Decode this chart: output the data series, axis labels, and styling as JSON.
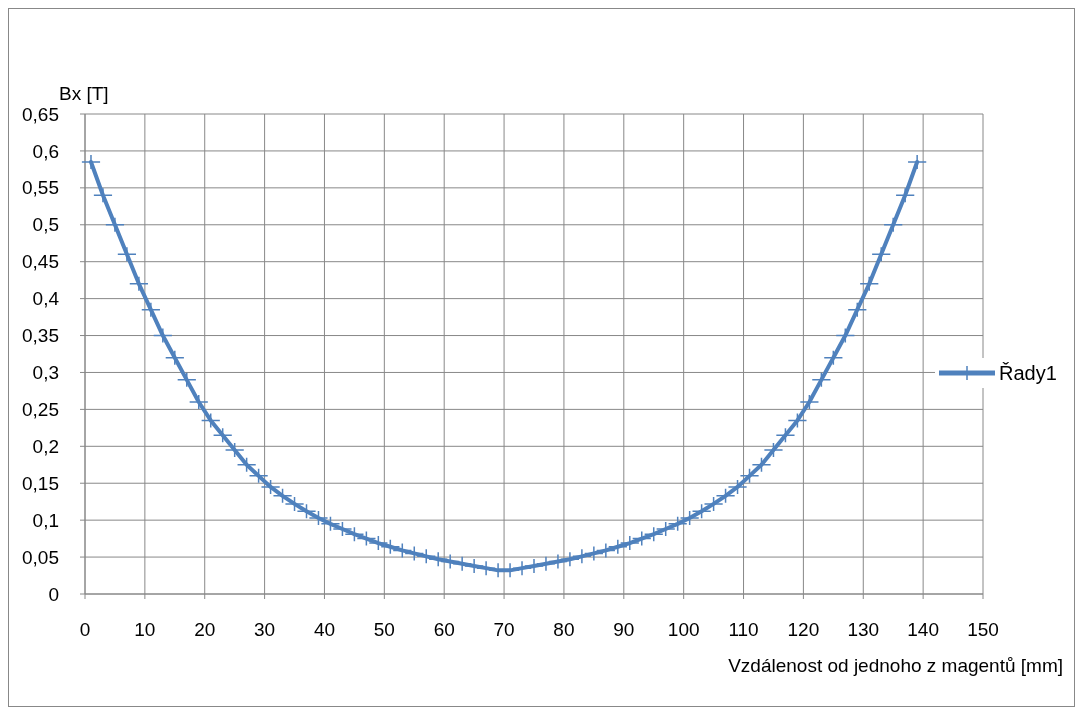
{
  "chart_data": {
    "type": "line",
    "ylabel": "Bx [T]",
    "xlabel": "Vzdálenost od jednoho z magentů [mm]",
    "xlim": [
      0,
      150
    ],
    "xticks": [
      0,
      10,
      20,
      30,
      40,
      50,
      60,
      70,
      80,
      90,
      100,
      110,
      120,
      130,
      140,
      150
    ],
    "ylim": [
      0,
      0.65
    ],
    "yticks": [
      0,
      {
        "value": 0.05,
        "label": "0,05"
      },
      {
        "value": 0.1,
        "label": "0,1"
      },
      {
        "value": 0.15,
        "label": "0,15"
      },
      {
        "value": 0.2,
        "label": "0,2"
      },
      {
        "value": 0.25,
        "label": "0,25"
      },
      {
        "value": 0.3,
        "label": "0,3"
      },
      {
        "value": 0.35,
        "label": "0,35"
      },
      {
        "value": 0.4,
        "label": "0,4"
      },
      {
        "value": 0.45,
        "label": "0,45"
      },
      {
        "value": 0.5,
        "label": "0,5"
      },
      {
        "value": 0.55,
        "label": "0,55"
      },
      {
        "value": 0.6,
        "label": "0,6"
      },
      {
        "value": 0.65,
        "label": "0,65"
      }
    ],
    "grid": true,
    "legend": "right",
    "marker": "cross",
    "line_style": "solid",
    "series": [
      {
        "name": "Řady1",
        "color": "#4f81bd",
        "x": [
          1,
          3,
          5,
          7,
          9,
          11,
          13,
          15,
          17,
          19,
          21,
          23,
          25,
          27,
          29,
          31,
          33,
          35,
          37,
          39,
          41,
          43,
          45,
          47,
          49,
          51,
          53,
          55,
          57,
          59,
          61,
          63,
          65,
          67,
          69,
          71,
          73,
          75,
          77,
          79,
          81,
          83,
          85,
          87,
          89,
          91,
          93,
          95,
          97,
          99,
          101,
          103,
          105,
          107,
          109,
          111,
          113,
          115,
          117,
          119,
          121,
          123,
          125,
          127,
          129,
          131,
          133,
          135,
          137,
          139
        ],
        "values": [
          0.585,
          0.54,
          0.5,
          0.46,
          0.42,
          0.385,
          0.35,
          0.32,
          0.29,
          0.26,
          0.235,
          0.215,
          0.195,
          0.175,
          0.16,
          0.145,
          0.133,
          0.122,
          0.112,
          0.103,
          0.095,
          0.088,
          0.081,
          0.075,
          0.069,
          0.064,
          0.059,
          0.055,
          0.051,
          0.047,
          0.044,
          0.041,
          0.038,
          0.035,
          0.032,
          0.032,
          0.035,
          0.038,
          0.041,
          0.044,
          0.047,
          0.051,
          0.055,
          0.059,
          0.064,
          0.069,
          0.075,
          0.081,
          0.088,
          0.095,
          0.103,
          0.112,
          0.122,
          0.133,
          0.145,
          0.16,
          0.175,
          0.195,
          0.215,
          0.235,
          0.26,
          0.29,
          0.32,
          0.35,
          0.385,
          0.42,
          0.46,
          0.5,
          0.54,
          0.585
        ]
      }
    ]
  }
}
